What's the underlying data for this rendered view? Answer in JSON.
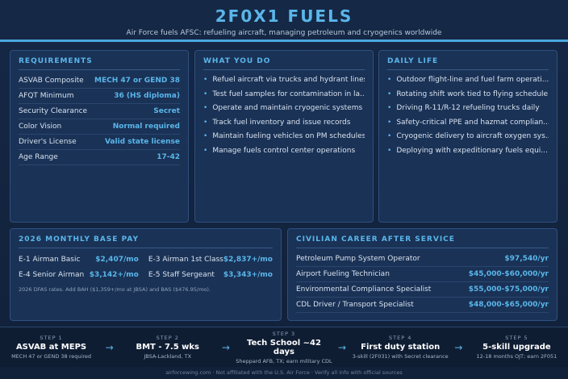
{
  "header": {
    "title": "2F0X1 FUELS",
    "subtitle": "Air Force fuels AFSC: refueling aircraft, managing petroleum and cryogenics worldwide"
  },
  "requirements": {
    "title": "REQUIREMENTS",
    "rows": [
      [
        "ASVAB Composite",
        "MECH 47 or GEND 38"
      ],
      [
        "AFQT Minimum",
        "36 (HS diploma)"
      ],
      [
        "Security Clearance",
        "Secret"
      ],
      [
        "Color Vision",
        "Normal required"
      ],
      [
        "Driver's License",
        "Valid state license"
      ],
      [
        "Age Range",
        "17-42"
      ]
    ]
  },
  "what_you_do": {
    "title": "WHAT YOU DO",
    "items": [
      "Refuel aircraft via trucks and hydrant lines",
      "Test fuel samples for contamination in la...",
      "Operate and maintain cryogenic systems",
      "Track fuel inventory and issue records",
      "Maintain fueling vehicles on PM schedules",
      "Manage fuels control center operations"
    ]
  },
  "daily_life": {
    "title": "DAILY LIFE",
    "items": [
      "Outdoor flight-line and fuel farm operati...",
      "Rotating shift work tied to flying schedule",
      "Driving R-11/R-12 refueling trucks daily",
      "Safety-critical PPE and hazmat complian...",
      "Cryogenic delivery to aircraft oxygen sys...",
      "Deploying with expeditionary fuels equi..."
    ]
  },
  "pay": {
    "title": "2026 MONTHLY BASE PAY",
    "rows": [
      [
        "E-1 Airman Basic",
        "$2,407/mo"
      ],
      [
        "E-3 Airman 1st Class",
        "$2,837+/mo"
      ],
      [
        "E-4 Senior Airman",
        "$3,142+/mo"
      ],
      [
        "E-5 Staff Sergeant",
        "$3,343+/mo"
      ]
    ],
    "note": "2026 DFAS rates. Add BAH ($1,359+/mo at JBSA) and BAS ($476.95/mo)."
  },
  "civilian": {
    "title": "CIVILIAN CAREER AFTER SERVICE",
    "rows": [
      [
        "Petroleum Pump System Operator",
        "$97,540/yr"
      ],
      [
        "Airport Fueling Technician",
        "$45,000-$60,000/yr"
      ],
      [
        "Environmental Compliance Specialist",
        "$55,000-$75,000/yr"
      ],
      [
        "CDL Driver / Transport Specialist",
        "$48,000-$65,000/yr"
      ]
    ]
  },
  "steps": [
    {
      "label": "STEP 1",
      "title": "ASVAB at MEPS",
      "detail": "MECH 47 or GEND 38 required"
    },
    {
      "label": "STEP 2",
      "title": "BMT - 7.5 wks",
      "detail": "JBSA-Lackland, TX"
    },
    {
      "label": "STEP 3",
      "title": "Tech School ~42 days",
      "detail": "Sheppard AFB, TX; earn military CDL"
    },
    {
      "label": "STEP 4",
      "title": "First duty station",
      "detail": "3-skill (2F031) with Secret clearance"
    },
    {
      "label": "STEP 5",
      "title": "5-skill upgrade",
      "detail": "12-18 months OJT; earn 2F051"
    }
  ],
  "footer": "airforcewing.com · Not affiliated with the U.S. Air Force · Verify all info with official sources"
}
